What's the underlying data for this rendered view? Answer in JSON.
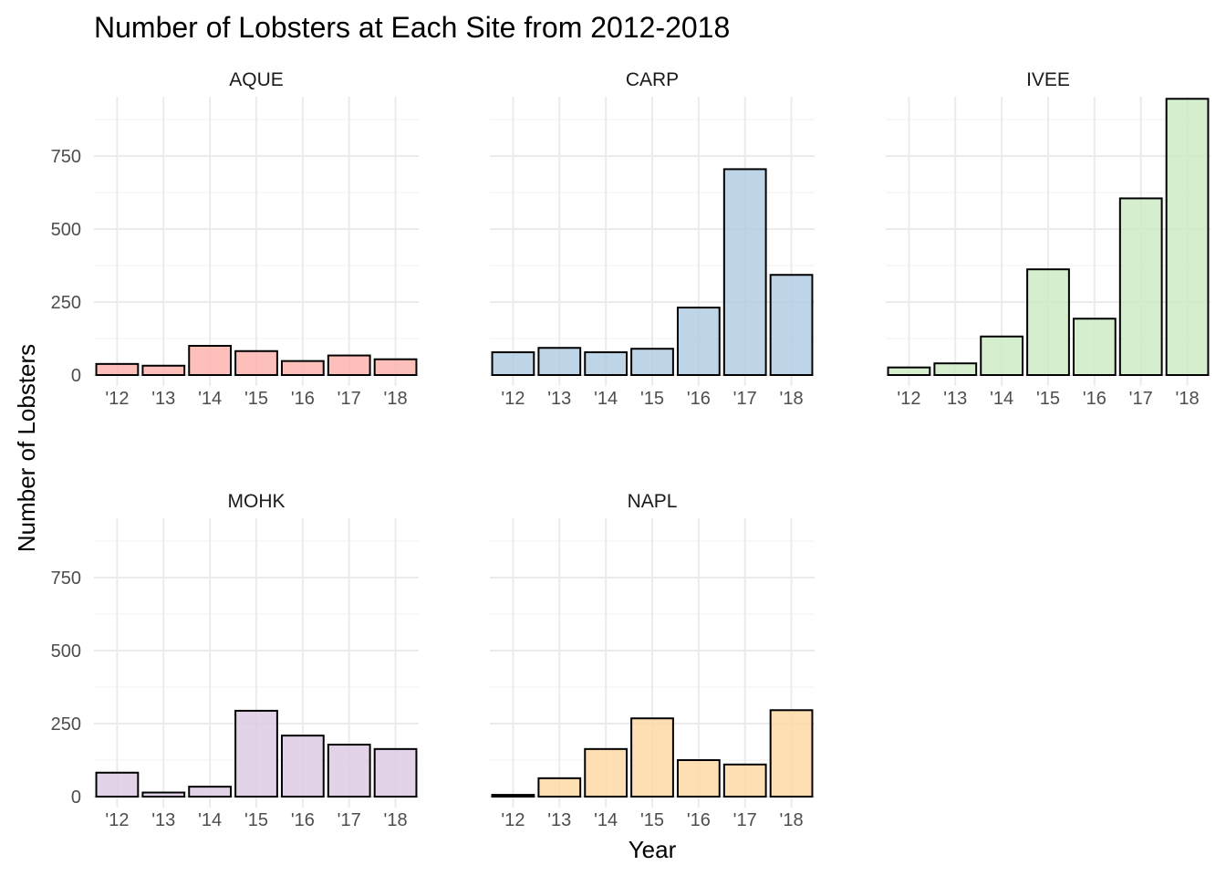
{
  "chart_data": {
    "type": "bar",
    "title": "Number of Lobsters at Each Site from 2012-2018",
    "xlabel": "Year",
    "ylabel": "Number of Lobsters",
    "categories": [
      "'12",
      "'13",
      "'14",
      "'15",
      "'16",
      "'17",
      "'18"
    ],
    "y_ticks": [
      "0",
      "250",
      "500",
      "750"
    ],
    "ylim": [
      0,
      950
    ],
    "grid": true,
    "facets": [
      {
        "name": "AQUE",
        "color": "#FBB4AE",
        "values": [
          38,
          32,
          100,
          82,
          48,
          67,
          54
        ]
      },
      {
        "name": "CARP",
        "color": "#B3CDE3",
        "values": [
          78,
          93,
          78,
          90,
          231,
          705,
          343
        ]
      },
      {
        "name": "IVEE",
        "color": "#CCEBC5",
        "values": [
          26,
          40,
          132,
          362,
          193,
          605,
          946
        ]
      },
      {
        "name": "MOHK",
        "color": "#DECBE4",
        "values": [
          82,
          14,
          34,
          294,
          209,
          178,
          163
        ]
      },
      {
        "name": "NAPL",
        "color": "#FED9A6",
        "values": [
          6,
          63,
          163,
          268,
          125,
          110,
          296
        ]
      }
    ]
  }
}
